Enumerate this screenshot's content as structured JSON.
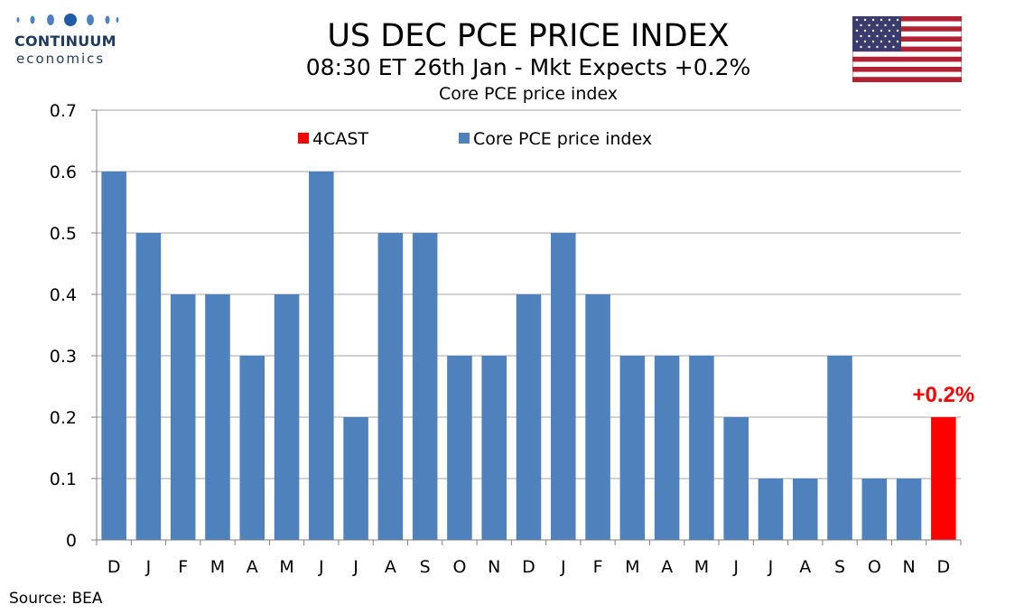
{
  "header": {
    "title": "US DEC PCE PRICE INDEX",
    "subtitle": "08:30 ET 26th Jan - Mkt Expects +0.2%",
    "chart_label": "Core PCE price index"
  },
  "logo": {
    "name": "CONTINUUM",
    "sub": "economics",
    "color": "#1f3b5c"
  },
  "flag": {
    "icon": "us-flag-icon"
  },
  "footer": {
    "source": "Source: BEA"
  },
  "colors": {
    "actual": "#4f81bd",
    "forecast": "#ff0000",
    "forecast_label": "#ff0000",
    "grid": "#a6a6a6"
  },
  "chart_data": {
    "type": "bar",
    "categories": [
      "D",
      "J",
      "F",
      "M",
      "A",
      "M",
      "J",
      "J",
      "A",
      "S",
      "O",
      "N",
      "D",
      "J",
      "F",
      "M",
      "A",
      "M",
      "J",
      "J",
      "A",
      "S",
      "O",
      "N",
      "D"
    ],
    "series": [
      {
        "name": "4CAST",
        "color": "#ff0000",
        "values": [
          null,
          null,
          null,
          null,
          null,
          null,
          null,
          null,
          null,
          null,
          null,
          null,
          null,
          null,
          null,
          null,
          null,
          null,
          null,
          null,
          null,
          null,
          null,
          null,
          0.2
        ]
      },
      {
        "name": "Core PCE price index",
        "color": "#4f81bd",
        "values": [
          0.6,
          0.5,
          0.4,
          0.4,
          0.3,
          0.4,
          0.6,
          0.2,
          0.5,
          0.5,
          0.3,
          0.3,
          0.4,
          0.5,
          0.4,
          0.3,
          0.3,
          0.3,
          0.2,
          0.1,
          0.1,
          0.3,
          0.1,
          0.1,
          null
        ]
      }
    ],
    "ylim": [
      0,
      0.7
    ],
    "yticks": [
      "0",
      "0.1",
      "0.2",
      "0.3",
      "0.4",
      "0.5",
      "0.6",
      "0.7"
    ],
    "ytick_values": [
      0,
      0.1,
      0.2,
      0.3,
      0.4,
      0.5,
      0.6,
      0.7
    ],
    "annotation": {
      "text": "+0.2%",
      "category_index": 24,
      "value": 0.2
    },
    "legend_position": "top-center",
    "grid": true
  }
}
